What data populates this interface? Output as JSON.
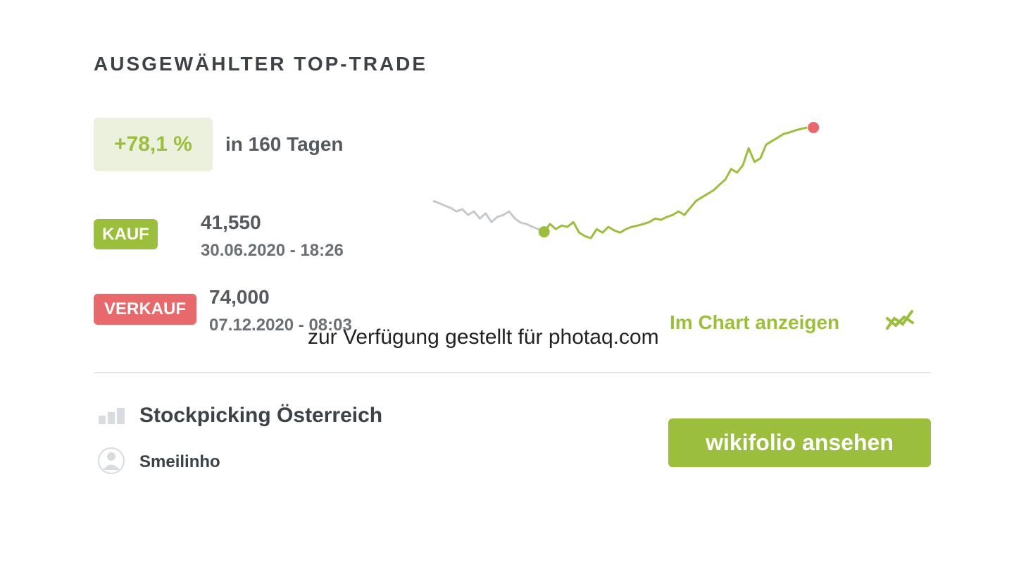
{
  "header": {
    "title": "AUSGEWÄHLTER TOP-TRADE"
  },
  "performance": {
    "change": "+78,1 %",
    "period": "in 160 Tagen"
  },
  "buy": {
    "label": "KAUF",
    "price": "41,550",
    "datetime": "30.06.2020 - 18:26"
  },
  "sell": {
    "label": "VERKAUF",
    "price": "74,000",
    "datetime": "07.12.2020 - 08:03"
  },
  "chart_link": "Im Chart anzeigen",
  "chart_data": {
    "type": "line",
    "end_color": "#e8696b",
    "series": [
      {
        "color": "#c5c9ce",
        "values": [
          51.2,
          50.5,
          49.7,
          49.0,
          47.9,
          48.6,
          46.8,
          47.9,
          45.7,
          47.3,
          44.6,
          46.2,
          46.8,
          47.9,
          45.7,
          44.4,
          44.0,
          43.1,
          42.4,
          41.55
        ]
      },
      {
        "color": "#9bbe3c",
        "values": [
          41.55,
          44.0,
          42.4,
          43.5,
          43.1,
          44.6,
          41.3,
          40.2,
          39.6,
          42.4,
          41.3,
          43.1,
          42.0,
          41.3,
          42.4,
          43.1,
          43.5,
          44.0,
          44.6,
          45.7,
          45.3,
          46.2,
          46.8,
          47.9,
          46.8,
          49.0,
          51.2,
          52.3,
          53.4,
          54.5,
          56.2,
          57.8,
          61.1,
          60.0,
          62.2,
          67.6,
          63.3,
          64.4,
          68.7,
          69.8,
          70.9,
          72.0,
          72.5,
          73.1,
          73.6,
          74.0
        ]
      }
    ]
  },
  "wikifolio": {
    "name": "Stockpicking Österreich",
    "trader": "Smeilinho",
    "button": "wikifolio ansehen"
  },
  "watermark": "zur Verfügung gestellt für photaq.com"
}
